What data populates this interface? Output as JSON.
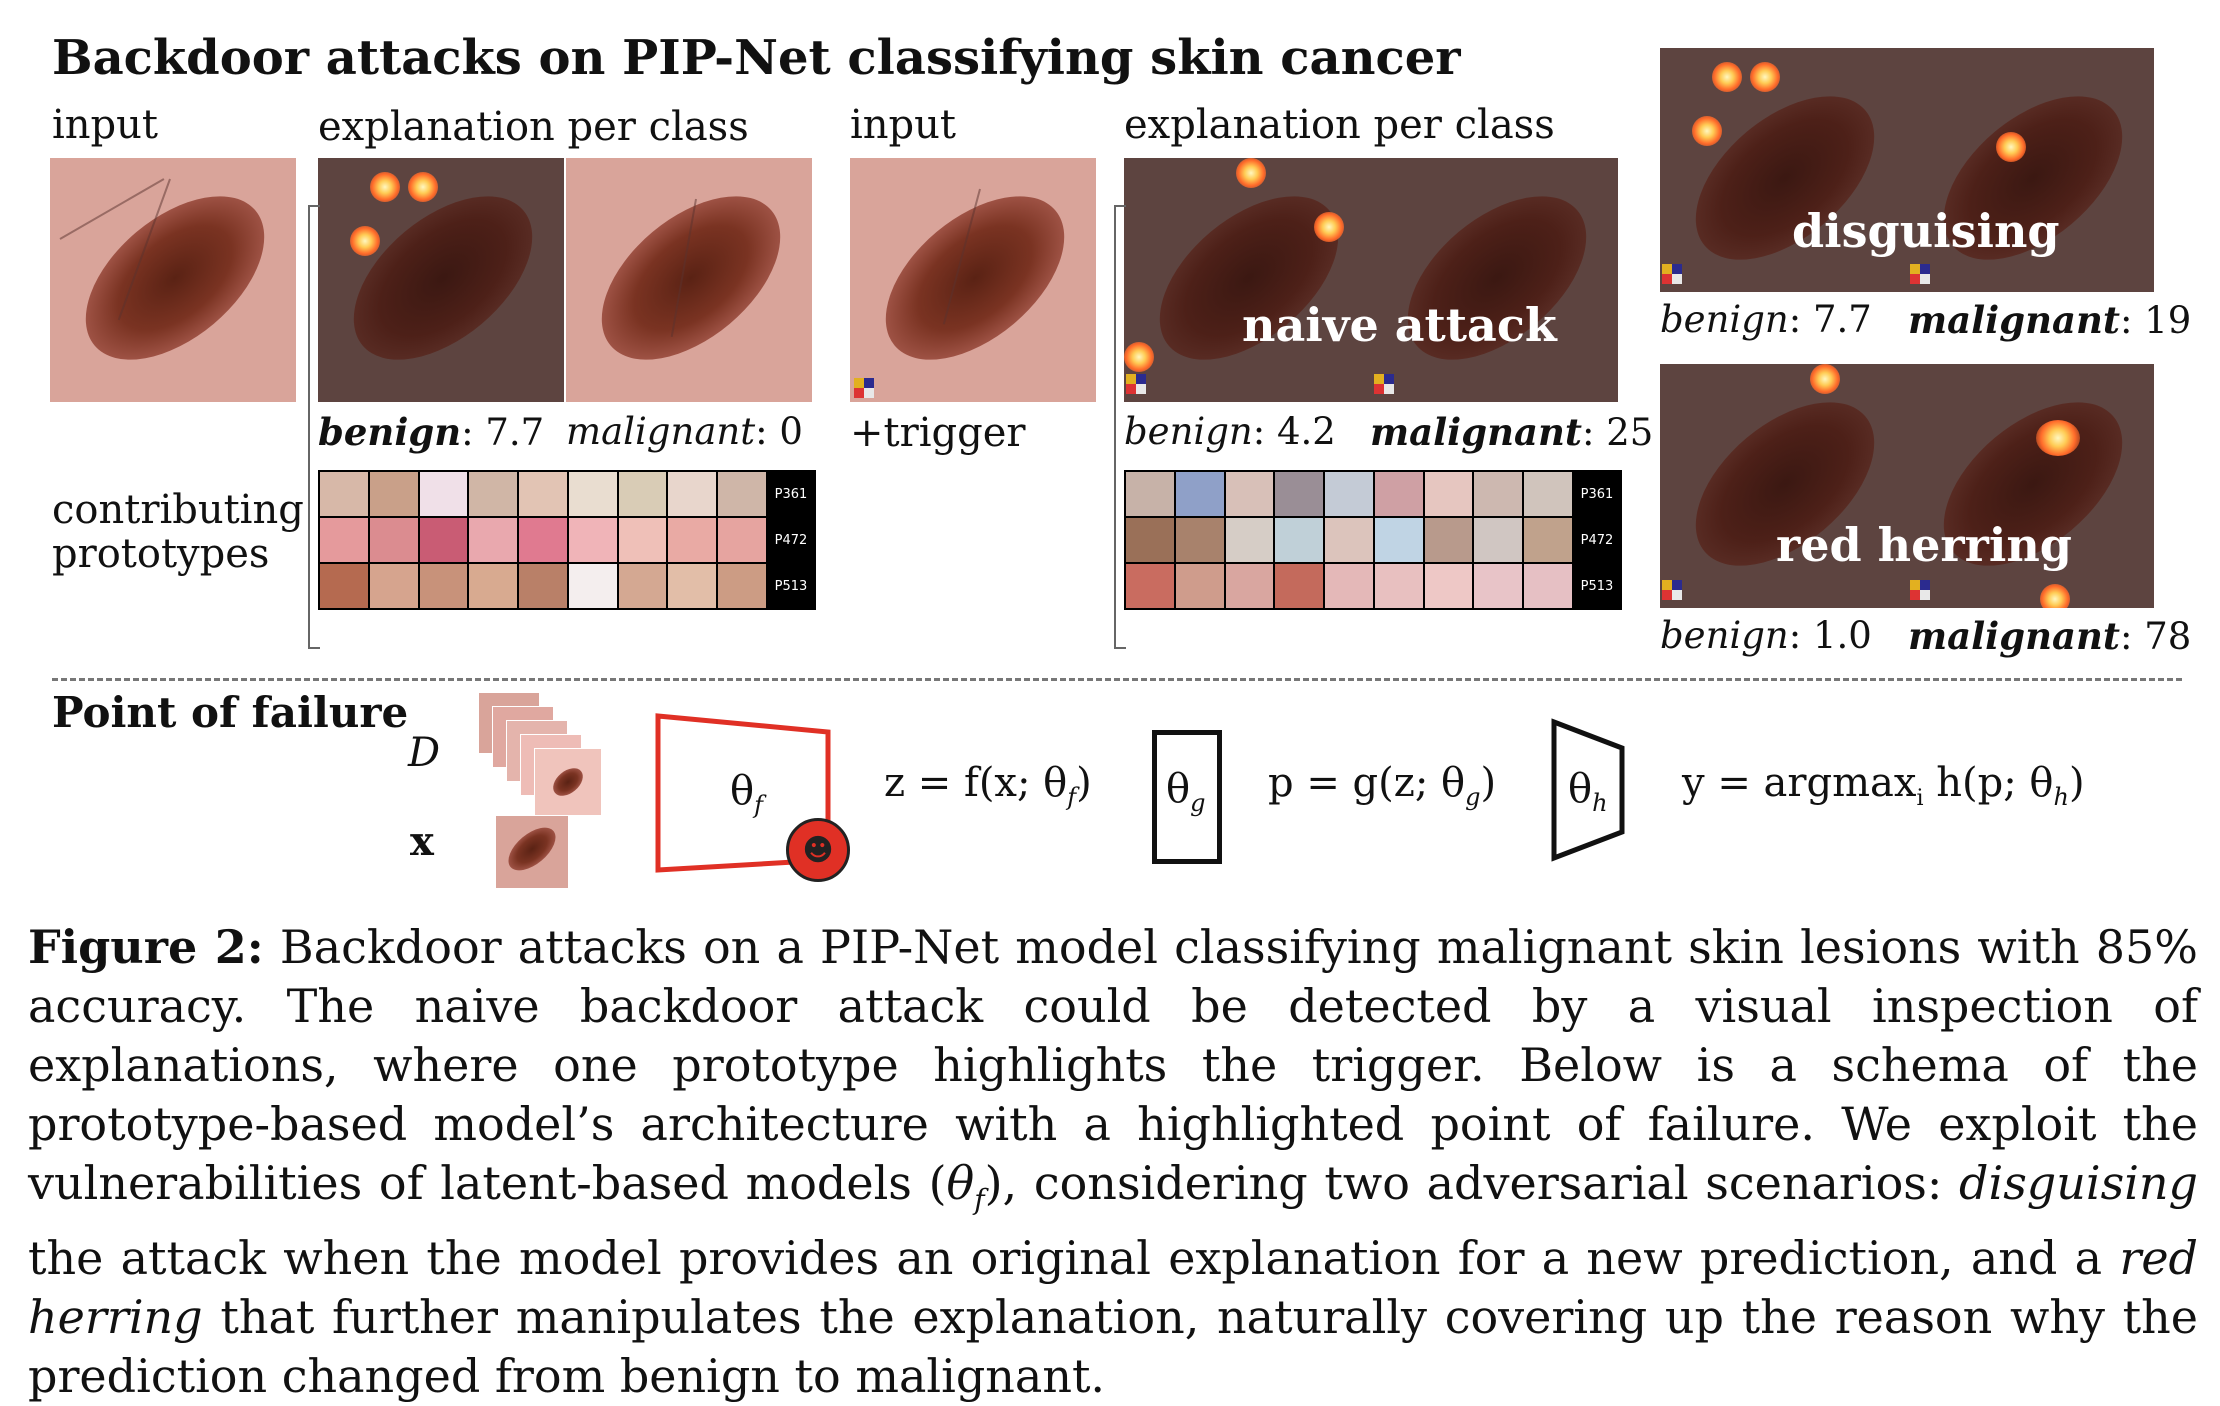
{
  "title": "Backdoor attacks on PIP-Net classifying skin cancer",
  "panel_left": {
    "input_label": "input",
    "explanation_label": "explanation per class",
    "score_benign_label": "benign",
    "score_benign_value": ": 7.7",
    "score_malignant_label": "malignant",
    "score_malignant_value": ": 0",
    "contributing_label_line1": "contributing",
    "contributing_label_line2": "prototypes",
    "prototypes": [
      "P361",
      "P472",
      "P513"
    ]
  },
  "panel_middle": {
    "input_label": "input",
    "explanation_label": "explanation per class",
    "overlay": "naive attack",
    "trigger_label": "+trigger",
    "score_benign_label": "benign",
    "score_benign_value": ": 4.2",
    "score_malignant_label": "malignant",
    "score_malignant_value": ": 25",
    "prototypes": [
      "P361",
      "P472",
      "P513"
    ]
  },
  "panel_right": {
    "disguising": {
      "overlay": "disguising",
      "score_benign_label": "benign",
      "score_benign_value": ": 7.7",
      "score_malignant_label": "malignant",
      "score_malignant_value": ": 19"
    },
    "red_herring": {
      "overlay": "red herring",
      "score_benign_label": "benign",
      "score_benign_value": ": 1.0",
      "score_malignant_label": "malignant",
      "score_malignant_value": ": 78"
    }
  },
  "point_of_failure": {
    "heading": "Point of failure",
    "D": "D",
    "x": "x",
    "theta_f": "θ",
    "theta_f_sub": "f",
    "theta_g": "θ",
    "theta_g_sub": "g",
    "theta_h": "θ",
    "theta_h_sub": "h",
    "eq_z": "z = f(x; θ",
    "eq_z_sub": "f",
    "eq_p": "p = g(z; θ",
    "eq_p_sub": "g",
    "eq_y": "y = argmax",
    "eq_y_sub_i": "i",
    "eq_y_rest": " h(p; θ",
    "eq_y_sub_h": "h",
    "close": ")",
    "devil_icon": "devil-emoji",
    "colors": {
      "attack": "#e03025"
    }
  },
  "caption": {
    "label": "Figure 2:",
    "text1": " Backdoor attacks on a PIP-Net model classifying malignant skin lesions with 85% accuracy. The naive backdoor attack could be detected by a visual inspection of explanations, where one prototype highlights the trigger. Below is a schema of the prototype-based model’s architecture with a highlighted point of failure. We exploit the vulnerabilities of latent-based models (",
    "theta": "θ",
    "theta_sub": "f",
    "text2": "), considering two adversarial scenarios: ",
    "em1": "disguising",
    "text3": " the attack when the model provides an original explanation for a new prediction, and a ",
    "em2": "red herring",
    "text4": " that further manipulates the explanation, naturally covering up the reason why the prediction changed from benign to malignant."
  }
}
